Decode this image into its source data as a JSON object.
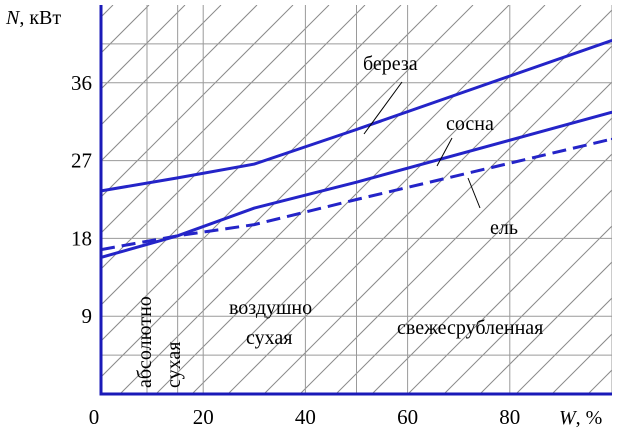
{
  "chart_data": {
    "type": "line",
    "ylabel_var": "N",
    "ylabel_unit": ", кВт",
    "xlabel_var": "W",
    "xlabel_unit": ", %",
    "xlim": [
      0,
      100
    ],
    "ylim": [
      0,
      45
    ],
    "x_ticks": [
      "0",
      "20",
      "40",
      "60",
      "80"
    ],
    "y_ticks": [
      "9",
      "18",
      "27",
      "36"
    ],
    "x_tick_values": [
      0,
      20,
      40,
      60,
      80
    ],
    "y_tick_values": [
      9,
      18,
      27,
      36
    ],
    "grid": true,
    "series": [
      {
        "name": "береза",
        "color": "#2424c8",
        "dash": "solid",
        "x": [
          0,
          15,
          30,
          50,
          100
        ],
        "y": [
          23.5,
          25.0,
          26.6,
          30.6,
          40.9
        ]
      },
      {
        "name": "сосна",
        "color": "#2424c8",
        "dash": "solid",
        "x": [
          0,
          15,
          30,
          50,
          100
        ],
        "y": [
          15.8,
          18.3,
          21.5,
          24.5,
          32.6
        ]
      },
      {
        "name": "ель",
        "color": "#2424c8",
        "dash": "dashed",
        "x": [
          0,
          15,
          30,
          50,
          100
        ],
        "y": [
          16.7,
          18.3,
          19.6,
          22.5,
          29.5
        ]
      }
    ],
    "regions": [
      {
        "label_lines": [
          "абсолютно"
        ],
        "vertical": true
      },
      {
        "label_lines": [
          "сухая"
        ],
        "vertical": true
      },
      {
        "label_lines": [
          "воздушно",
          "сухая"
        ],
        "vertical": false
      },
      {
        "label_lines": [
          "свежесрубленная"
        ],
        "vertical": false
      }
    ],
    "region_bounds_w": [
      0,
      9,
      15,
      50,
      100
    ]
  }
}
